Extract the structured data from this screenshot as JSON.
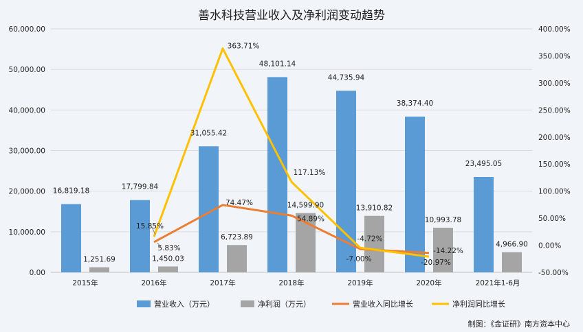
{
  "chart_data": {
    "type": "bar",
    "title": "善水科技营业收入及净利润变动趋势",
    "categories": [
      "2015年",
      "2016年",
      "2017年",
      "2018年",
      "2019年",
      "2020年",
      "2021年1-6月"
    ],
    "bar_series": [
      {
        "name": "营业收入（万元）",
        "color": "#5b9bd5",
        "values": [
          16819.18,
          17799.84,
          31055.42,
          48101.14,
          44735.94,
          38374.4,
          23495.05
        ],
        "labels": [
          "16,819.18",
          "17,799.84",
          "31,055.42",
          "48,101.14",
          "44,735.94",
          "38,374.40",
          "23,495.05"
        ]
      },
      {
        "name": "净利润（万元）",
        "color": "#a5a5a5",
        "values": [
          1251.69,
          1450.03,
          6723.89,
          14599.9,
          13910.82,
          10993.78,
          4966.9
        ],
        "labels": [
          "1,251.69",
          "1,450.03",
          "6,723.89",
          "14,599.90",
          "13,910.82",
          "10,993.78",
          "4,966.90"
        ]
      }
    ],
    "line_series": [
      {
        "name": "营业收入同比增长",
        "color": "#ed7d31",
        "values": [
          null,
          5.83,
          74.47,
          54.89,
          -7.0,
          -14.22,
          null
        ],
        "labels": [
          null,
          "5.83%",
          "74.47%",
          "54.89%",
          "-7.00%",
          "-14.22%",
          null
        ]
      },
      {
        "name": "净利润同比增长",
        "color": "#ffc000",
        "values": [
          null,
          15.85,
          363.71,
          117.13,
          -4.72,
          -20.97,
          null
        ],
        "labels": [
          null,
          "15.85%",
          "363.71%",
          "117.13%",
          "-4.72%",
          "-20.97%",
          null
        ]
      }
    ],
    "left_axis": {
      "ylim": [
        0,
        60000
      ],
      "ticks": [
        "0.00",
        "10,000.00",
        "20,000.00",
        "30,000.00",
        "40,000.00",
        "50,000.00",
        "60,000.00"
      ]
    },
    "right_axis": {
      "ylim": [
        -50,
        400
      ],
      "ticks": [
        "-50.00%",
        "0.00%",
        "50.00%",
        "100.00%",
        "150.00%",
        "200.00%",
        "250.00%",
        "300.00%",
        "350.00%",
        "400.00%"
      ]
    },
    "grid": true,
    "legend_position": "bottom"
  },
  "credit": "制图：《金证研》南方资本中心"
}
